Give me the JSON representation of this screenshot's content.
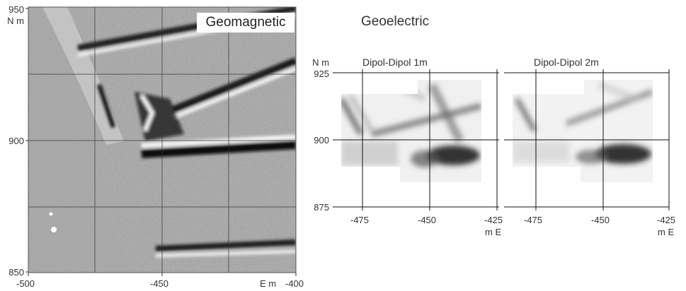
{
  "geomagnetic": {
    "title": "Geomagnetic",
    "y_unit": "N m",
    "x_unit": "E m",
    "y_ticks": [
      "950",
      "900",
      "850"
    ],
    "x_ticks": [
      "-500",
      "-450",
      "-400"
    ]
  },
  "geoelectric": {
    "title": "Geoelectric",
    "y_unit": "N m",
    "x_unit": "m E",
    "y_ticks": [
      "925",
      "900",
      "875"
    ],
    "panels": [
      {
        "title": "Dipol-Dipol 1m",
        "x_ticks": [
          "-475",
          "-450",
          "-425"
        ]
      },
      {
        "title": "Dipol-Dipol 2m",
        "x_ticks": [
          "-475",
          "-450",
          "-425"
        ]
      }
    ]
  }
}
